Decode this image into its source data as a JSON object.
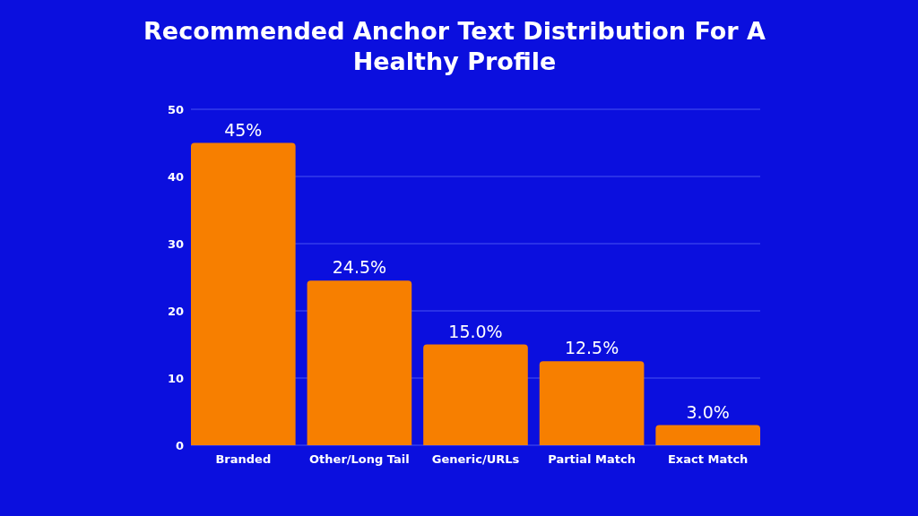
{
  "chart_data": {
    "type": "bar",
    "title": "Recommended Anchor Text Distribution For A Healthy Profile",
    "categories": [
      "Branded",
      "Other/Long Tail",
      "Generic/URLs",
      "Partial Match",
      "Exact Match"
    ],
    "values": [
      45,
      24.5,
      15,
      12.5,
      3
    ],
    "value_labels": [
      "45%",
      "24.5%",
      "15.0%",
      "12.5%",
      "3.0%"
    ],
    "color": "#f77f00",
    "ylim": [
      0,
      50
    ],
    "yticks": [
      0,
      10,
      20,
      30,
      40,
      50
    ],
    "grid": "y"
  }
}
